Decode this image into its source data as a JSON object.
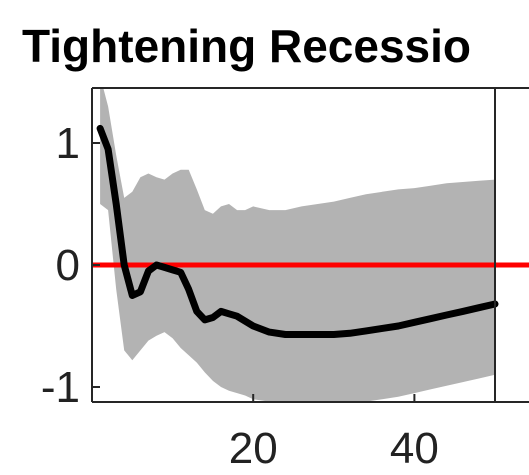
{
  "chart_data": {
    "type": "line",
    "title": "Tightening Recessio",
    "xlabel": "",
    "ylabel": "",
    "xlim": [
      0,
      50
    ],
    "ylim": [
      -1.2,
      1.5
    ],
    "x_ticks": [
      20,
      40
    ],
    "y_ticks": [
      1,
      0,
      -1
    ],
    "x_tick_labels": [
      "20",
      "40"
    ],
    "y_tick_labels": [
      "1",
      "0",
      "-1"
    ],
    "grid": false,
    "legend": "none",
    "reference_line": {
      "y": 0,
      "color": "#ff0000"
    },
    "band": {
      "color": "#b3b3b3",
      "x": [
        1,
        2,
        3,
        4,
        5,
        6,
        7,
        8,
        9,
        10,
        11,
        12,
        13,
        14,
        15,
        16,
        17,
        18,
        19,
        20,
        22,
        24,
        26,
        28,
        30,
        32,
        34,
        36,
        38,
        40,
        42,
        44,
        46,
        48,
        50
      ],
      "upper": [
        1.55,
        1.3,
        0.9,
        0.55,
        0.6,
        0.72,
        0.75,
        0.72,
        0.7,
        0.75,
        0.78,
        0.78,
        0.62,
        0.45,
        0.42,
        0.48,
        0.5,
        0.45,
        0.45,
        0.48,
        0.45,
        0.45,
        0.48,
        0.5,
        0.52,
        0.55,
        0.58,
        0.6,
        0.62,
        0.63,
        0.65,
        0.67,
        0.68,
        0.69,
        0.7
      ],
      "lower": [
        0.5,
        0.45,
        -0.2,
        -0.7,
        -0.78,
        -0.7,
        -0.62,
        -0.58,
        -0.55,
        -0.6,
        -0.68,
        -0.74,
        -0.8,
        -0.88,
        -0.95,
        -1.0,
        -1.03,
        -1.05,
        -1.07,
        -1.1,
        -1.12,
        -1.14,
        -1.15,
        -1.15,
        -1.14,
        -1.13,
        -1.12,
        -1.1,
        -1.08,
        -1.05,
        -1.02,
        -0.99,
        -0.96,
        -0.93,
        -0.9
      ]
    },
    "series": [
      {
        "color": "#000000",
        "x": [
          1,
          2,
          3,
          4,
          5,
          6,
          7,
          8,
          9,
          10,
          11,
          12,
          13,
          14,
          15,
          16,
          17,
          18,
          20,
          22,
          24,
          26,
          28,
          30,
          32,
          34,
          36,
          38,
          40,
          42,
          44,
          46,
          48,
          50
        ],
        "values": [
          1.12,
          0.95,
          0.5,
          0.0,
          -0.25,
          -0.22,
          -0.05,
          0.0,
          -0.02,
          -0.04,
          -0.06,
          -0.2,
          -0.38,
          -0.45,
          -0.43,
          -0.38,
          -0.4,
          -0.42,
          -0.5,
          -0.55,
          -0.57,
          -0.57,
          -0.57,
          -0.57,
          -0.56,
          -0.54,
          -0.52,
          -0.5,
          -0.47,
          -0.44,
          -0.41,
          -0.38,
          -0.35,
          -0.32
        ]
      }
    ]
  }
}
